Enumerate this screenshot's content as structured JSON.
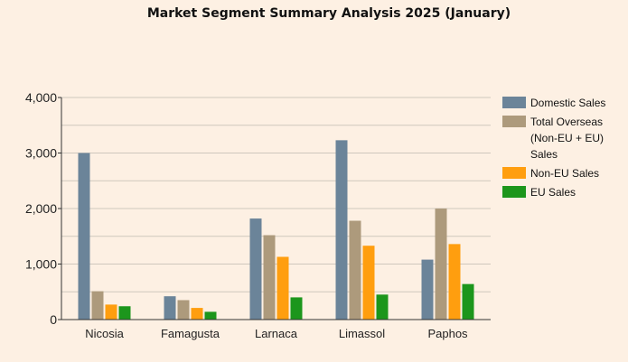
{
  "chart_data": {
    "type": "bar",
    "title": "Market Segment Summary Analysis 2025 (January)",
    "xlabel": "",
    "ylabel": "",
    "categories": [
      "Nicosia",
      "Famagusta",
      "Larnaca",
      "Limassol",
      "Paphos"
    ],
    "ylim": [
      0,
      4000
    ],
    "yticks": [
      0,
      1000,
      2000,
      3000,
      4000
    ],
    "ytick_labels": [
      "0",
      "1,000",
      "2,000",
      "3,000",
      "4,000"
    ],
    "grid": true,
    "legend_position": "right",
    "series": [
      {
        "name": "Domestic Sales",
        "color": "#6b8499",
        "values": [
          3000,
          420,
          1820,
          3230,
          1080
        ]
      },
      {
        "name": "Total Overseas (Non-EU + EU) Sales",
        "color": "#ad9a7c",
        "values": [
          510,
          350,
          1520,
          1780,
          2000
        ]
      },
      {
        "name": "Non-EU Sales",
        "color": "#ff9e0f",
        "values": [
          270,
          210,
          1130,
          1330,
          1360
        ]
      },
      {
        "name": "EU Sales",
        "color": "#1c961c",
        "values": [
          240,
          140,
          400,
          450,
          640
        ]
      }
    ]
  }
}
